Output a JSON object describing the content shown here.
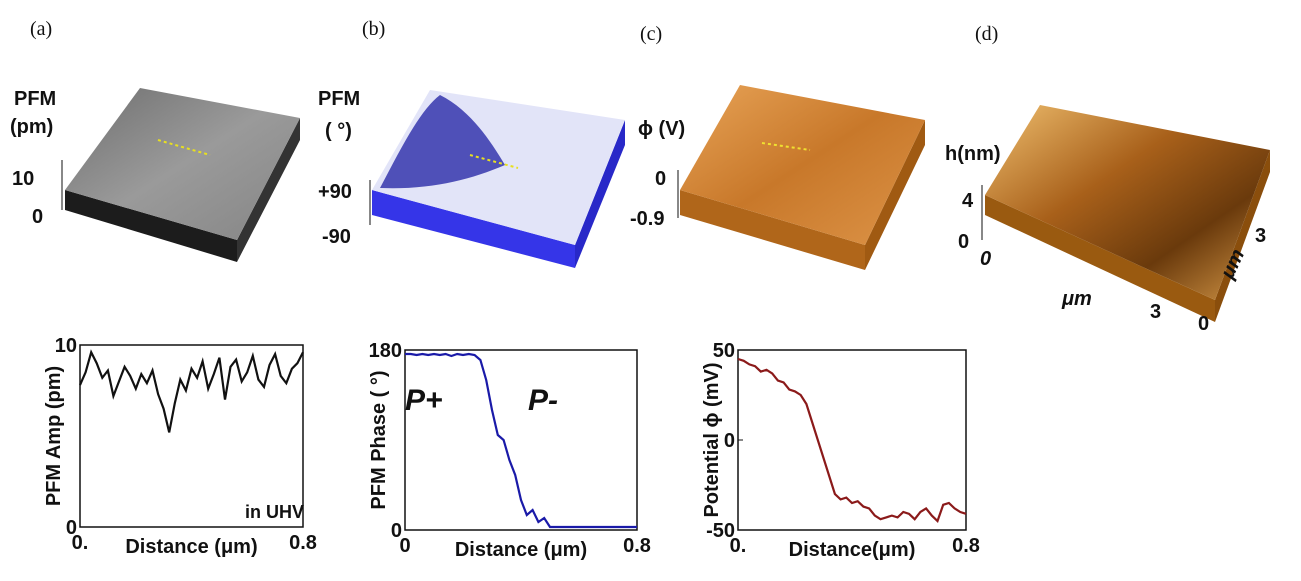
{
  "chart_data": [
    {
      "type": "line",
      "y_label": "PFM Amp (pm)",
      "x_label": "Distance (μm)",
      "xlim": [
        0,
        0.8
      ],
      "xticks": [
        {
          "value": 0,
          "label": "0."
        },
        0.8
      ],
      "ylim": [
        0,
        10
      ],
      "yticks": [
        0,
        10
      ],
      "annotations": [
        {
          "text": "in UHV",
          "color": "#222222"
        }
      ],
      "x": [
        0,
        0.02,
        0.04,
        0.06,
        0.08,
        0.1,
        0.12,
        0.14,
        0.16,
        0.18,
        0.2,
        0.22,
        0.24,
        0.26,
        0.28,
        0.3,
        0.32,
        0.34,
        0.36,
        0.38,
        0.4,
        0.42,
        0.44,
        0.46,
        0.48,
        0.5,
        0.52,
        0.54,
        0.56,
        0.58,
        0.6,
        0.62,
        0.64,
        0.66,
        0.68,
        0.7,
        0.72,
        0.74,
        0.76,
        0.78,
        0.8
      ],
      "series": [
        {
          "color": "#111111",
          "values": [
            7.8,
            8.5,
            9.6,
            9,
            8.2,
            8.6,
            7.2,
            8,
            8.8,
            8.3,
            7.6,
            8.4,
            7.9,
            8.6,
            7.3,
            6.5,
            5.2,
            6.8,
            8.1,
            7.5,
            8.7,
            8.2,
            9.1,
            7.6,
            8.4,
            9.3,
            7,
            8.8,
            9.2,
            8,
            8.5,
            9.4,
            8.1,
            7.7,
            8.9,
            9.5,
            8.3,
            7.9,
            8.7,
            9,
            9.6
          ]
        }
      ]
    },
    {
      "type": "line",
      "y_label": "PFM Phase ( °)",
      "x_label": "Distance (μm)",
      "xlim": [
        0,
        0.8
      ],
      "xticks": [
        0,
        0.8
      ],
      "ylim": [
        0,
        180
      ],
      "yticks": [
        0,
        180
      ],
      "annotations": [
        {
          "text": "P+",
          "color": "#e01010"
        },
        {
          "text": "P-",
          "color": "#1a1ad0"
        }
      ],
      "x": [
        0,
        0.02,
        0.04,
        0.06,
        0.08,
        0.1,
        0.12,
        0.14,
        0.16,
        0.18,
        0.2,
        0.22,
        0.24,
        0.26,
        0.28,
        0.3,
        0.32,
        0.34,
        0.36,
        0.38,
        0.4,
        0.42,
        0.44,
        0.46,
        0.48,
        0.5,
        0.52,
        0.54,
        0.56,
        0.58,
        0.6,
        0.62,
        0.64,
        0.66,
        0.68,
        0.7,
        0.72,
        0.74,
        0.76,
        0.78,
        0.8
      ],
      "series": [
        {
          "color": "#1a1aa8",
          "values": [
            176,
            176,
            175,
            176,
            175,
            176,
            175,
            176,
            174,
            176,
            175,
            176,
            175,
            170,
            150,
            120,
            95,
            90,
            70,
            55,
            30,
            15,
            20,
            8,
            12,
            3,
            3,
            3,
            3,
            3,
            3,
            3,
            3,
            3,
            3,
            3,
            3,
            3,
            3,
            3,
            3
          ]
        }
      ]
    },
    {
      "type": "line",
      "y_label": "Potential ϕ (mV)",
      "x_label": "Distance(μm)",
      "xlim": [
        0,
        0.8
      ],
      "xticks": [
        {
          "value": 0,
          "label": "0."
        },
        0.8
      ],
      "ylim": [
        -50,
        50
      ],
      "yticks": [
        -50,
        0,
        50
      ],
      "annotations": [],
      "x": [
        0,
        0.02,
        0.04,
        0.06,
        0.08,
        0.1,
        0.12,
        0.14,
        0.16,
        0.18,
        0.2,
        0.22,
        0.24,
        0.26,
        0.28,
        0.3,
        0.32,
        0.34,
        0.36,
        0.38,
        0.4,
        0.42,
        0.44,
        0.46,
        0.48,
        0.5,
        0.52,
        0.54,
        0.56,
        0.58,
        0.6,
        0.62,
        0.64,
        0.66,
        0.68,
        0.7,
        0.72,
        0.74,
        0.76,
        0.78,
        0.8
      ],
      "series": [
        {
          "color": "#8b1a1a",
          "values": [
            45,
            44,
            42,
            41,
            38,
            39,
            37,
            33,
            32,
            28,
            27,
            25,
            20,
            10,
            0,
            -10,
            -20,
            -30,
            -33,
            -32,
            -35,
            -34,
            -37,
            -38,
            -42,
            -44,
            -43,
            -42,
            -43,
            -40,
            -41,
            -44,
            -40,
            -38,
            -42,
            -45,
            -36,
            -35,
            -38,
            -40,
            -41
          ]
        }
      ]
    }
  ],
  "surfaces": [
    {
      "letter": "(a)",
      "labels": [
        "PFM",
        "(pm)",
        "10",
        "0"
      ]
    },
    {
      "letter": "(b)",
      "labels": [
        "PFM",
        "( °)",
        "+90",
        "-90"
      ]
    },
    {
      "letter": "(c)",
      "labels": [
        "ϕ (V)",
        "0",
        "-0.9"
      ]
    },
    {
      "letter": "(d)",
      "labels": [
        "h(nm)",
        "4",
        "0",
        "0",
        "μm",
        "3",
        "0",
        "μm",
        "3"
      ]
    }
  ]
}
